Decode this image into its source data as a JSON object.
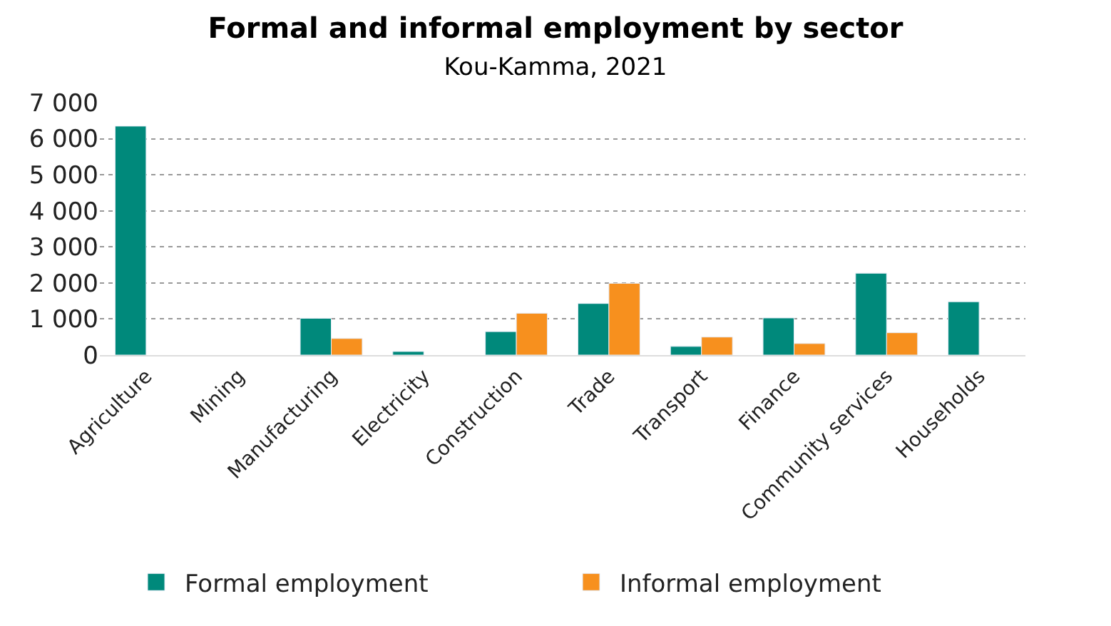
{
  "chart_data": {
    "type": "bar",
    "title": "Formal and informal employment by sector",
    "subtitle": "Kou-Kamma, 2021",
    "categories": [
      "Agriculture",
      "Mining",
      "Manufacturing",
      "Electricity",
      "Construction",
      "Trade",
      "Transport",
      "Finance",
      "Community services",
      "Households"
    ],
    "series": [
      {
        "name": "Formal employment",
        "color": "#00897b",
        "values": [
          6350,
          null,
          1020,
          100,
          650,
          1430,
          240,
          1030,
          2270,
          1480
        ]
      },
      {
        "name": "Informal employment",
        "color": "#f7901e",
        "values": [
          null,
          null,
          460,
          null,
          1160,
          1990,
          500,
          320,
          620,
          null
        ]
      }
    ],
    "ylim": [
      0,
      7000
    ],
    "yticks": [
      {
        "value": 0,
        "label": "0"
      },
      {
        "value": 1000,
        "label": "1 000"
      },
      {
        "value": 2000,
        "label": "2 000"
      },
      {
        "value": 3000,
        "label": "3 000"
      },
      {
        "value": 4000,
        "label": "4 000"
      },
      {
        "value": 5000,
        "label": "5 000"
      },
      {
        "value": 6000,
        "label": "6 000"
      },
      {
        "value": 7000,
        "label": "7 000"
      }
    ],
    "grid": "y",
    "legend": "bottom"
  }
}
